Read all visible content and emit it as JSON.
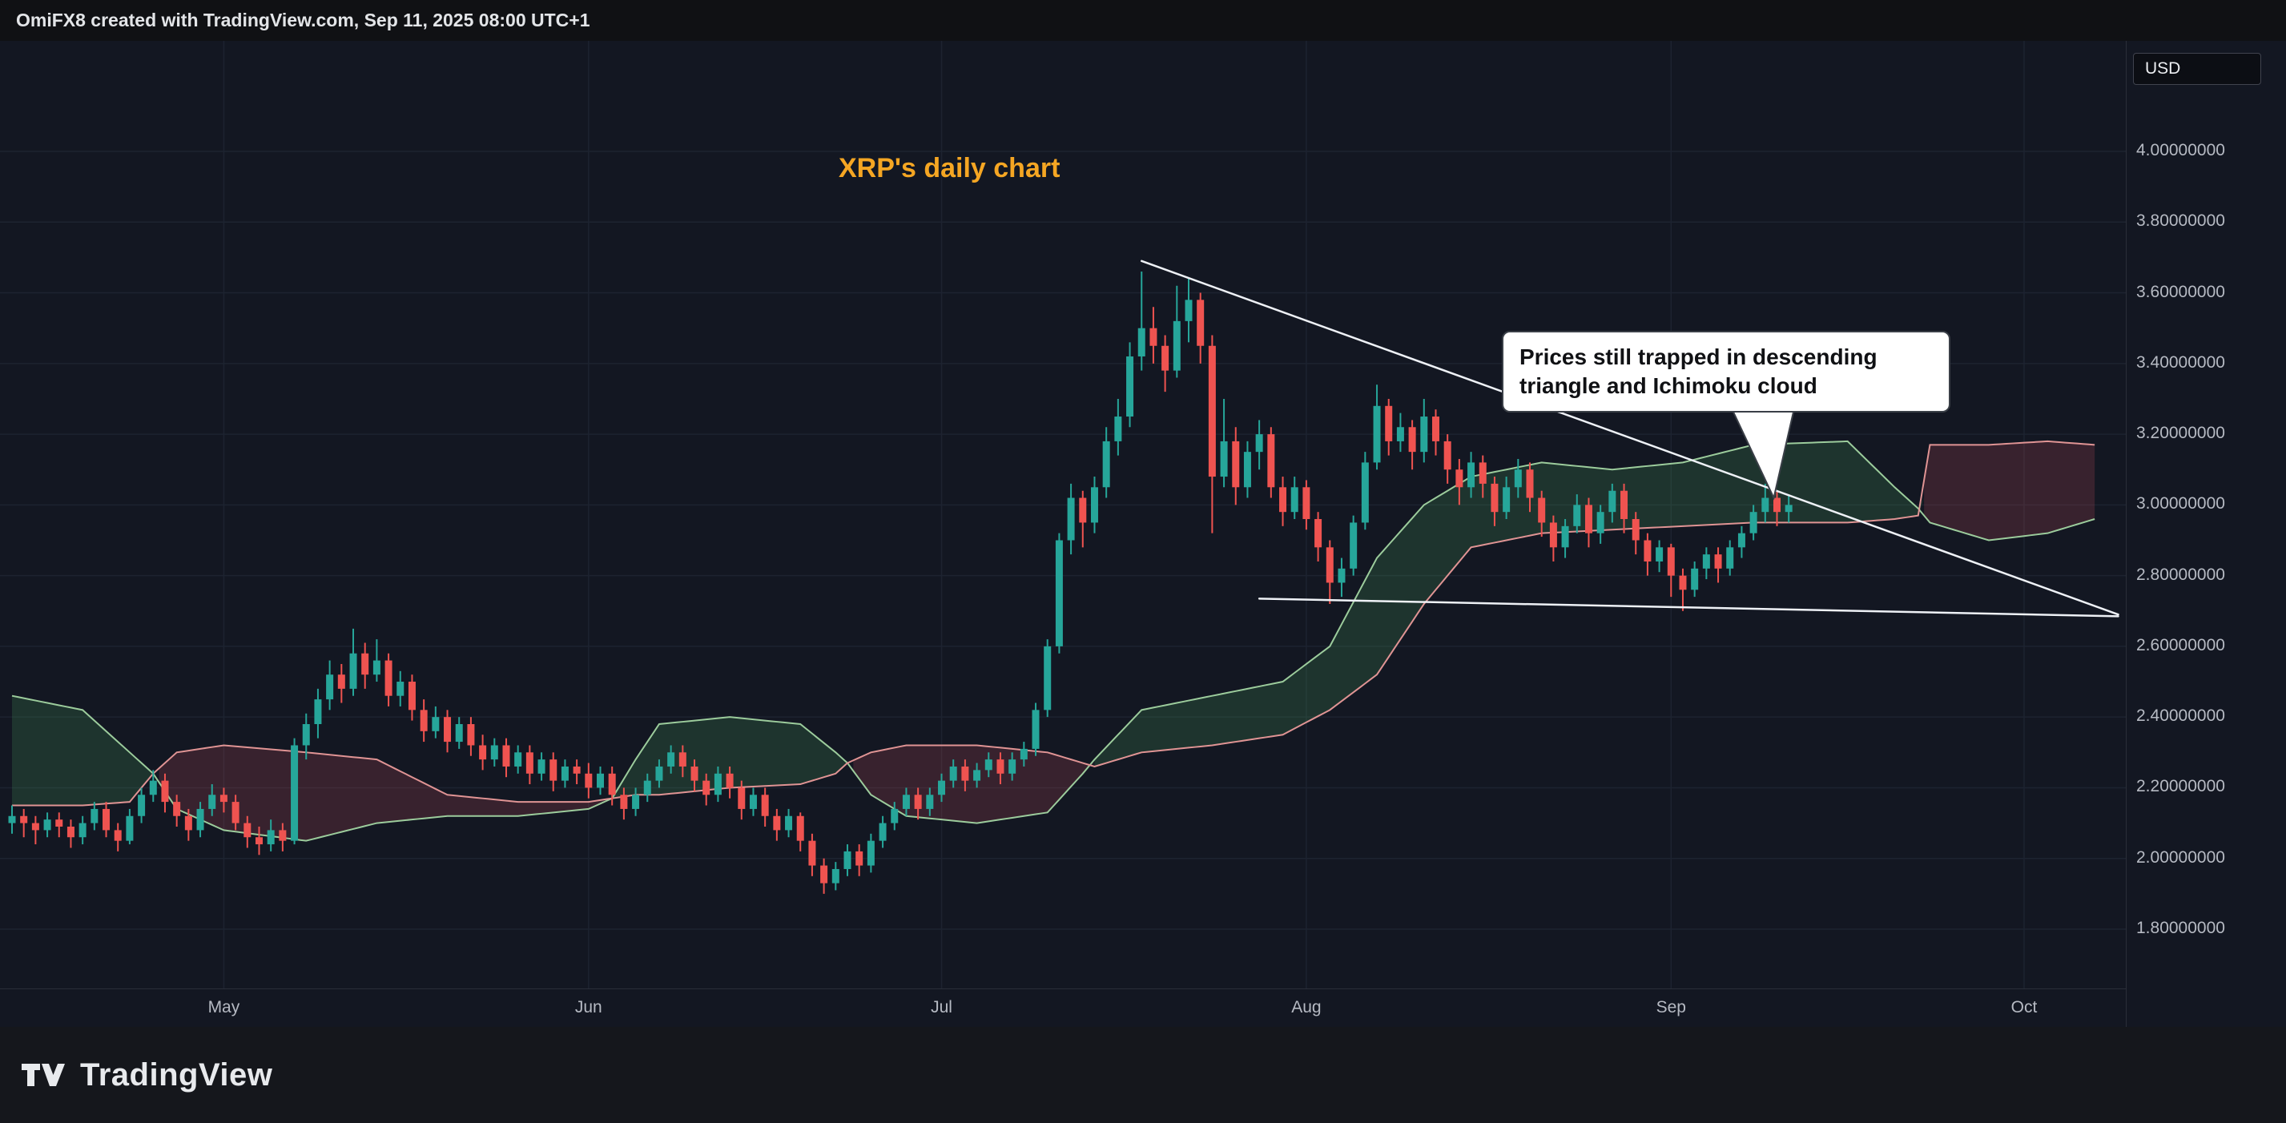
{
  "header": {
    "credit_text": "OmiFX8 created with TradingView.com, Sep 11, 2025 08:00 UTC+1"
  },
  "price_axis": {
    "currency_label": "USD"
  },
  "chart": {
    "title": "XRP's daily chart",
    "title_color": "#f5a623",
    "annotation_text": "Prices still trapped in descending triangle and Ichimoku cloud"
  },
  "chart_data": {
    "type": "candlestick",
    "title": "XRP's daily chart",
    "ylabel": "USD",
    "ylim": [
      1.63,
      4.31
    ],
    "grid": true,
    "y_ticks": [
      {
        "label": "4.00000000",
        "price": 4.0
      },
      {
        "label": "3.80000000",
        "price": 3.8
      },
      {
        "label": "3.60000000",
        "price": 3.6
      },
      {
        "label": "3.40000000",
        "price": 3.4
      },
      {
        "label": "3.20000000",
        "price": 3.2
      },
      {
        "label": "3.00000000",
        "price": 3.0
      },
      {
        "label": "2.80000000",
        "price": 2.8
      },
      {
        "label": "2.60000000",
        "price": 2.6
      },
      {
        "label": "2.40000000",
        "price": 2.4
      },
      {
        "label": "2.20000000",
        "price": 2.2
      },
      {
        "label": "2.00000000",
        "price": 2.0
      },
      {
        "label": "1.80000000",
        "price": 1.8
      }
    ],
    "x_ticks": [
      {
        "label": "May",
        "i": 18
      },
      {
        "label": "Jun",
        "i": 49
      },
      {
        "label": "Jul",
        "i": 79
      },
      {
        "label": "Aug",
        "i": 110
      },
      {
        "label": "Sep",
        "i": 141
      },
      {
        "label": "Oct",
        "i": 171
      }
    ],
    "candles": [
      [
        2.1,
        2.15,
        2.07,
        2.12
      ],
      [
        2.12,
        2.14,
        2.06,
        2.1
      ],
      [
        2.1,
        2.12,
        2.04,
        2.08
      ],
      [
        2.08,
        2.13,
        2.06,
        2.11
      ],
      [
        2.11,
        2.13,
        2.06,
        2.09
      ],
      [
        2.09,
        2.11,
        2.03,
        2.06
      ],
      [
        2.06,
        2.12,
        2.04,
        2.1
      ],
      [
        2.1,
        2.16,
        2.08,
        2.14
      ],
      [
        2.14,
        2.16,
        2.06,
        2.08
      ],
      [
        2.08,
        2.1,
        2.02,
        2.05
      ],
      [
        2.05,
        2.14,
        2.04,
        2.12
      ],
      [
        2.12,
        2.2,
        2.1,
        2.18
      ],
      [
        2.18,
        2.25,
        2.16,
        2.22
      ],
      [
        2.22,
        2.24,
        2.13,
        2.16
      ],
      [
        2.16,
        2.18,
        2.09,
        2.12
      ],
      [
        2.12,
        2.14,
        2.05,
        2.08
      ],
      [
        2.08,
        2.16,
        2.06,
        2.14
      ],
      [
        2.14,
        2.21,
        2.12,
        2.18
      ],
      [
        2.18,
        2.2,
        2.13,
        2.16
      ],
      [
        2.16,
        2.18,
        2.08,
        2.1
      ],
      [
        2.1,
        2.12,
        2.03,
        2.06
      ],
      [
        2.06,
        2.09,
        2.01,
        2.04
      ],
      [
        2.04,
        2.11,
        2.02,
        2.08
      ],
      [
        2.08,
        2.1,
        2.02,
        2.05
      ],
      [
        2.05,
        2.34,
        2.04,
        2.32
      ],
      [
        2.32,
        2.41,
        2.28,
        2.38
      ],
      [
        2.38,
        2.48,
        2.34,
        2.45
      ],
      [
        2.45,
        2.56,
        2.42,
        2.52
      ],
      [
        2.52,
        2.55,
        2.44,
        2.48
      ],
      [
        2.48,
        2.65,
        2.46,
        2.58
      ],
      [
        2.58,
        2.61,
        2.48,
        2.52
      ],
      [
        2.52,
        2.62,
        2.5,
        2.56
      ],
      [
        2.56,
        2.58,
        2.43,
        2.46
      ],
      [
        2.46,
        2.53,
        2.43,
        2.5
      ],
      [
        2.5,
        2.52,
        2.39,
        2.42
      ],
      [
        2.42,
        2.45,
        2.33,
        2.36
      ],
      [
        2.36,
        2.43,
        2.34,
        2.4
      ],
      [
        2.4,
        2.42,
        2.3,
        2.33
      ],
      [
        2.33,
        2.4,
        2.31,
        2.38
      ],
      [
        2.38,
        2.4,
        2.29,
        2.32
      ],
      [
        2.32,
        2.35,
        2.25,
        2.28
      ],
      [
        2.28,
        2.34,
        2.26,
        2.32
      ],
      [
        2.32,
        2.34,
        2.23,
        2.26
      ],
      [
        2.26,
        2.32,
        2.24,
        2.3
      ],
      [
        2.3,
        2.32,
        2.21,
        2.24
      ],
      [
        2.24,
        2.3,
        2.22,
        2.28
      ],
      [
        2.28,
        2.3,
        2.19,
        2.22
      ],
      [
        2.22,
        2.28,
        2.2,
        2.26
      ],
      [
        2.26,
        2.28,
        2.21,
        2.24
      ],
      [
        2.24,
        2.27,
        2.17,
        2.2
      ],
      [
        2.2,
        2.26,
        2.18,
        2.24
      ],
      [
        2.24,
        2.26,
        2.15,
        2.18
      ],
      [
        2.18,
        2.2,
        2.11,
        2.14
      ],
      [
        2.14,
        2.2,
        2.12,
        2.18
      ],
      [
        2.18,
        2.24,
        2.16,
        2.22
      ],
      [
        2.22,
        2.28,
        2.2,
        2.26
      ],
      [
        2.26,
        2.32,
        2.24,
        2.3
      ],
      [
        2.3,
        2.32,
        2.23,
        2.26
      ],
      [
        2.26,
        2.28,
        2.19,
        2.22
      ],
      [
        2.22,
        2.24,
        2.15,
        2.18
      ],
      [
        2.18,
        2.26,
        2.16,
        2.24
      ],
      [
        2.24,
        2.26,
        2.17,
        2.2
      ],
      [
        2.2,
        2.22,
        2.11,
        2.14
      ],
      [
        2.14,
        2.2,
        2.12,
        2.18
      ],
      [
        2.18,
        2.2,
        2.09,
        2.12
      ],
      [
        2.12,
        2.14,
        2.05,
        2.08
      ],
      [
        2.08,
        2.14,
        2.06,
        2.12
      ],
      [
        2.12,
        2.13,
        2.02,
        2.05
      ],
      [
        2.05,
        2.07,
        1.95,
        1.98
      ],
      [
        1.98,
        2.0,
        1.9,
        1.93
      ],
      [
        1.93,
        1.99,
        1.91,
        1.97
      ],
      [
        1.97,
        2.04,
        1.95,
        2.02
      ],
      [
        2.02,
        2.04,
        1.95,
        1.98
      ],
      [
        1.98,
        2.07,
        1.96,
        2.05
      ],
      [
        2.05,
        2.12,
        2.03,
        2.1
      ],
      [
        2.1,
        2.16,
        2.08,
        2.14
      ],
      [
        2.14,
        2.2,
        2.12,
        2.18
      ],
      [
        2.18,
        2.2,
        2.11,
        2.14
      ],
      [
        2.14,
        2.2,
        2.12,
        2.18
      ],
      [
        2.18,
        2.24,
        2.16,
        2.22
      ],
      [
        2.22,
        2.28,
        2.2,
        2.26
      ],
      [
        2.26,
        2.28,
        2.19,
        2.22
      ],
      [
        2.22,
        2.27,
        2.2,
        2.25
      ],
      [
        2.25,
        2.3,
        2.23,
        2.28
      ],
      [
        2.28,
        2.3,
        2.21,
        2.24
      ],
      [
        2.24,
        2.3,
        2.22,
        2.28
      ],
      [
        2.28,
        2.33,
        2.26,
        2.31
      ],
      [
        2.31,
        2.44,
        2.29,
        2.42
      ],
      [
        2.42,
        2.62,
        2.4,
        2.6
      ],
      [
        2.6,
        2.92,
        2.58,
        2.9
      ],
      [
        2.9,
        3.06,
        2.86,
        3.02
      ],
      [
        3.02,
        3.04,
        2.88,
        2.95
      ],
      [
        2.95,
        3.08,
        2.92,
        3.05
      ],
      [
        3.05,
        3.22,
        3.02,
        3.18
      ],
      [
        3.18,
        3.3,
        3.14,
        3.25
      ],
      [
        3.25,
        3.46,
        3.22,
        3.42
      ],
      [
        3.42,
        3.66,
        3.38,
        3.5
      ],
      [
        3.5,
        3.56,
        3.4,
        3.45
      ],
      [
        3.45,
        3.48,
        3.32,
        3.38
      ],
      [
        3.38,
        3.62,
        3.36,
        3.52
      ],
      [
        3.52,
        3.64,
        3.46,
        3.58
      ],
      [
        3.58,
        3.6,
        3.4,
        3.45
      ],
      [
        3.45,
        3.48,
        2.92,
        3.08
      ],
      [
        3.08,
        3.3,
        3.05,
        3.18
      ],
      [
        3.18,
        3.22,
        3.0,
        3.05
      ],
      [
        3.05,
        3.18,
        3.02,
        3.15
      ],
      [
        3.15,
        3.24,
        3.1,
        3.2
      ],
      [
        3.2,
        3.22,
        3.02,
        3.05
      ],
      [
        3.05,
        3.08,
        2.94,
        2.98
      ],
      [
        2.98,
        3.08,
        2.96,
        3.05
      ],
      [
        3.05,
        3.07,
        2.93,
        2.96
      ],
      [
        2.96,
        2.98,
        2.84,
        2.88
      ],
      [
        2.88,
        2.9,
        2.72,
        2.78
      ],
      [
        2.78,
        2.85,
        2.74,
        2.82
      ],
      [
        2.82,
        2.97,
        2.8,
        2.95
      ],
      [
        2.95,
        3.15,
        2.93,
        3.12
      ],
      [
        3.12,
        3.34,
        3.1,
        3.28
      ],
      [
        3.28,
        3.3,
        3.14,
        3.18
      ],
      [
        3.18,
        3.26,
        3.15,
        3.22
      ],
      [
        3.22,
        3.24,
        3.1,
        3.15
      ],
      [
        3.15,
        3.3,
        3.12,
        3.25
      ],
      [
        3.25,
        3.27,
        3.14,
        3.18
      ],
      [
        3.18,
        3.2,
        3.06,
        3.1
      ],
      [
        3.1,
        3.13,
        3.0,
        3.05
      ],
      [
        3.05,
        3.15,
        3.02,
        3.12
      ],
      [
        3.12,
        3.14,
        3.02,
        3.06
      ],
      [
        3.06,
        3.08,
        2.94,
        2.98
      ],
      [
        2.98,
        3.08,
        2.96,
        3.05
      ],
      [
        3.05,
        3.13,
        3.02,
        3.1
      ],
      [
        3.1,
        3.12,
        2.98,
        3.02
      ],
      [
        3.02,
        3.04,
        2.91,
        2.95
      ],
      [
        2.95,
        2.97,
        2.84,
        2.88
      ],
      [
        2.88,
        2.96,
        2.85,
        2.94
      ],
      [
        2.94,
        3.03,
        2.92,
        3.0
      ],
      [
        3.0,
        3.02,
        2.88,
        2.92
      ],
      [
        2.92,
        3.0,
        2.89,
        2.98
      ],
      [
        2.98,
        3.06,
        2.95,
        3.04
      ],
      [
        3.04,
        3.06,
        2.92,
        2.96
      ],
      [
        2.96,
        2.98,
        2.86,
        2.9
      ],
      [
        2.9,
        2.92,
        2.8,
        2.84
      ],
      [
        2.84,
        2.9,
        2.81,
        2.88
      ],
      [
        2.88,
        2.89,
        2.74,
        2.8
      ],
      [
        2.8,
        2.82,
        2.7,
        2.76
      ],
      [
        2.76,
        2.84,
        2.74,
        2.82
      ],
      [
        2.82,
        2.88,
        2.79,
        2.86
      ],
      [
        2.86,
        2.88,
        2.78,
        2.82
      ],
      [
        2.82,
        2.9,
        2.8,
        2.88
      ],
      [
        2.88,
        2.94,
        2.85,
        2.92
      ],
      [
        2.92,
        3.0,
        2.9,
        2.98
      ],
      [
        2.98,
        3.06,
        2.95,
        3.02
      ],
      [
        3.02,
        3.04,
        2.94,
        2.98
      ],
      [
        2.98,
        3.03,
        2.95,
        3.0
      ]
    ],
    "ichimoku": {
      "cloud_points": [
        [
          0,
          2.46,
          2.15
        ],
        [
          6,
          2.42,
          2.15
        ],
        [
          10,
          2.3,
          2.16
        ],
        [
          12,
          2.24,
          2.24
        ],
        [
          14,
          2.14,
          2.3
        ],
        [
          18,
          2.08,
          2.32
        ],
        [
          25,
          2.05,
          2.3
        ],
        [
          31,
          2.1,
          2.28
        ],
        [
          37,
          2.12,
          2.18
        ],
        [
          43,
          2.12,
          2.16
        ],
        [
          49,
          2.14,
          2.16
        ],
        [
          51,
          2.17,
          2.17
        ],
        [
          53,
          2.28,
          2.18
        ],
        [
          55,
          2.38,
          2.18
        ],
        [
          61,
          2.4,
          2.2
        ],
        [
          67,
          2.38,
          2.21
        ],
        [
          70,
          2.3,
          2.24
        ],
        [
          71,
          2.27,
          2.27
        ],
        [
          73,
          2.18,
          2.3
        ],
        [
          76,
          2.12,
          2.32
        ],
        [
          82,
          2.1,
          2.32
        ],
        [
          88,
          2.13,
          2.3
        ],
        [
          91,
          2.24,
          2.27
        ],
        [
          92,
          2.28,
          2.26
        ],
        [
          96,
          2.42,
          2.3
        ],
        [
          102,
          2.46,
          2.32
        ],
        [
          108,
          2.5,
          2.35
        ],
        [
          112,
          2.6,
          2.42
        ],
        [
          116,
          2.85,
          2.52
        ],
        [
          120,
          3.0,
          2.72
        ],
        [
          124,
          3.08,
          2.88
        ],
        [
          130,
          3.12,
          2.92
        ],
        [
          136,
          3.1,
          2.93
        ],
        [
          142,
          3.12,
          2.94
        ],
        [
          148,
          3.17,
          2.95
        ],
        [
          156,
          3.18,
          2.95
        ],
        [
          160,
          3.05,
          2.96
        ],
        [
          162,
          2.99,
          2.97
        ],
        [
          163,
          2.95,
          3.17
        ],
        [
          168,
          2.9,
          3.17
        ],
        [
          173,
          2.92,
          3.18
        ],
        [
          177,
          2.96,
          3.17
        ]
      ]
    },
    "trendlines": [
      {
        "name": "descending-resistance",
        "from": [
          96,
          3.69
        ],
        "to": [
          179,
          2.69
        ]
      },
      {
        "name": "triangle-support",
        "from": [
          106,
          2.735
        ],
        "to": [
          179,
          2.685
        ]
      }
    ],
    "annotation_anchor": {
      "i": 150,
      "price": 3.02
    },
    "colors": {
      "up": "#26a69a",
      "down": "#ef5350",
      "cloud_bull": "rgba(72,160,90,0.22)",
      "cloud_bear": "rgba(205,80,95,0.20)",
      "span_a": "#9ccc9c",
      "span_b": "#e09494",
      "trendline": "#eef1f6",
      "grid": "#1d2330",
      "title": "#f5a623"
    }
  },
  "footer": {
    "brand": "TradingView"
  }
}
